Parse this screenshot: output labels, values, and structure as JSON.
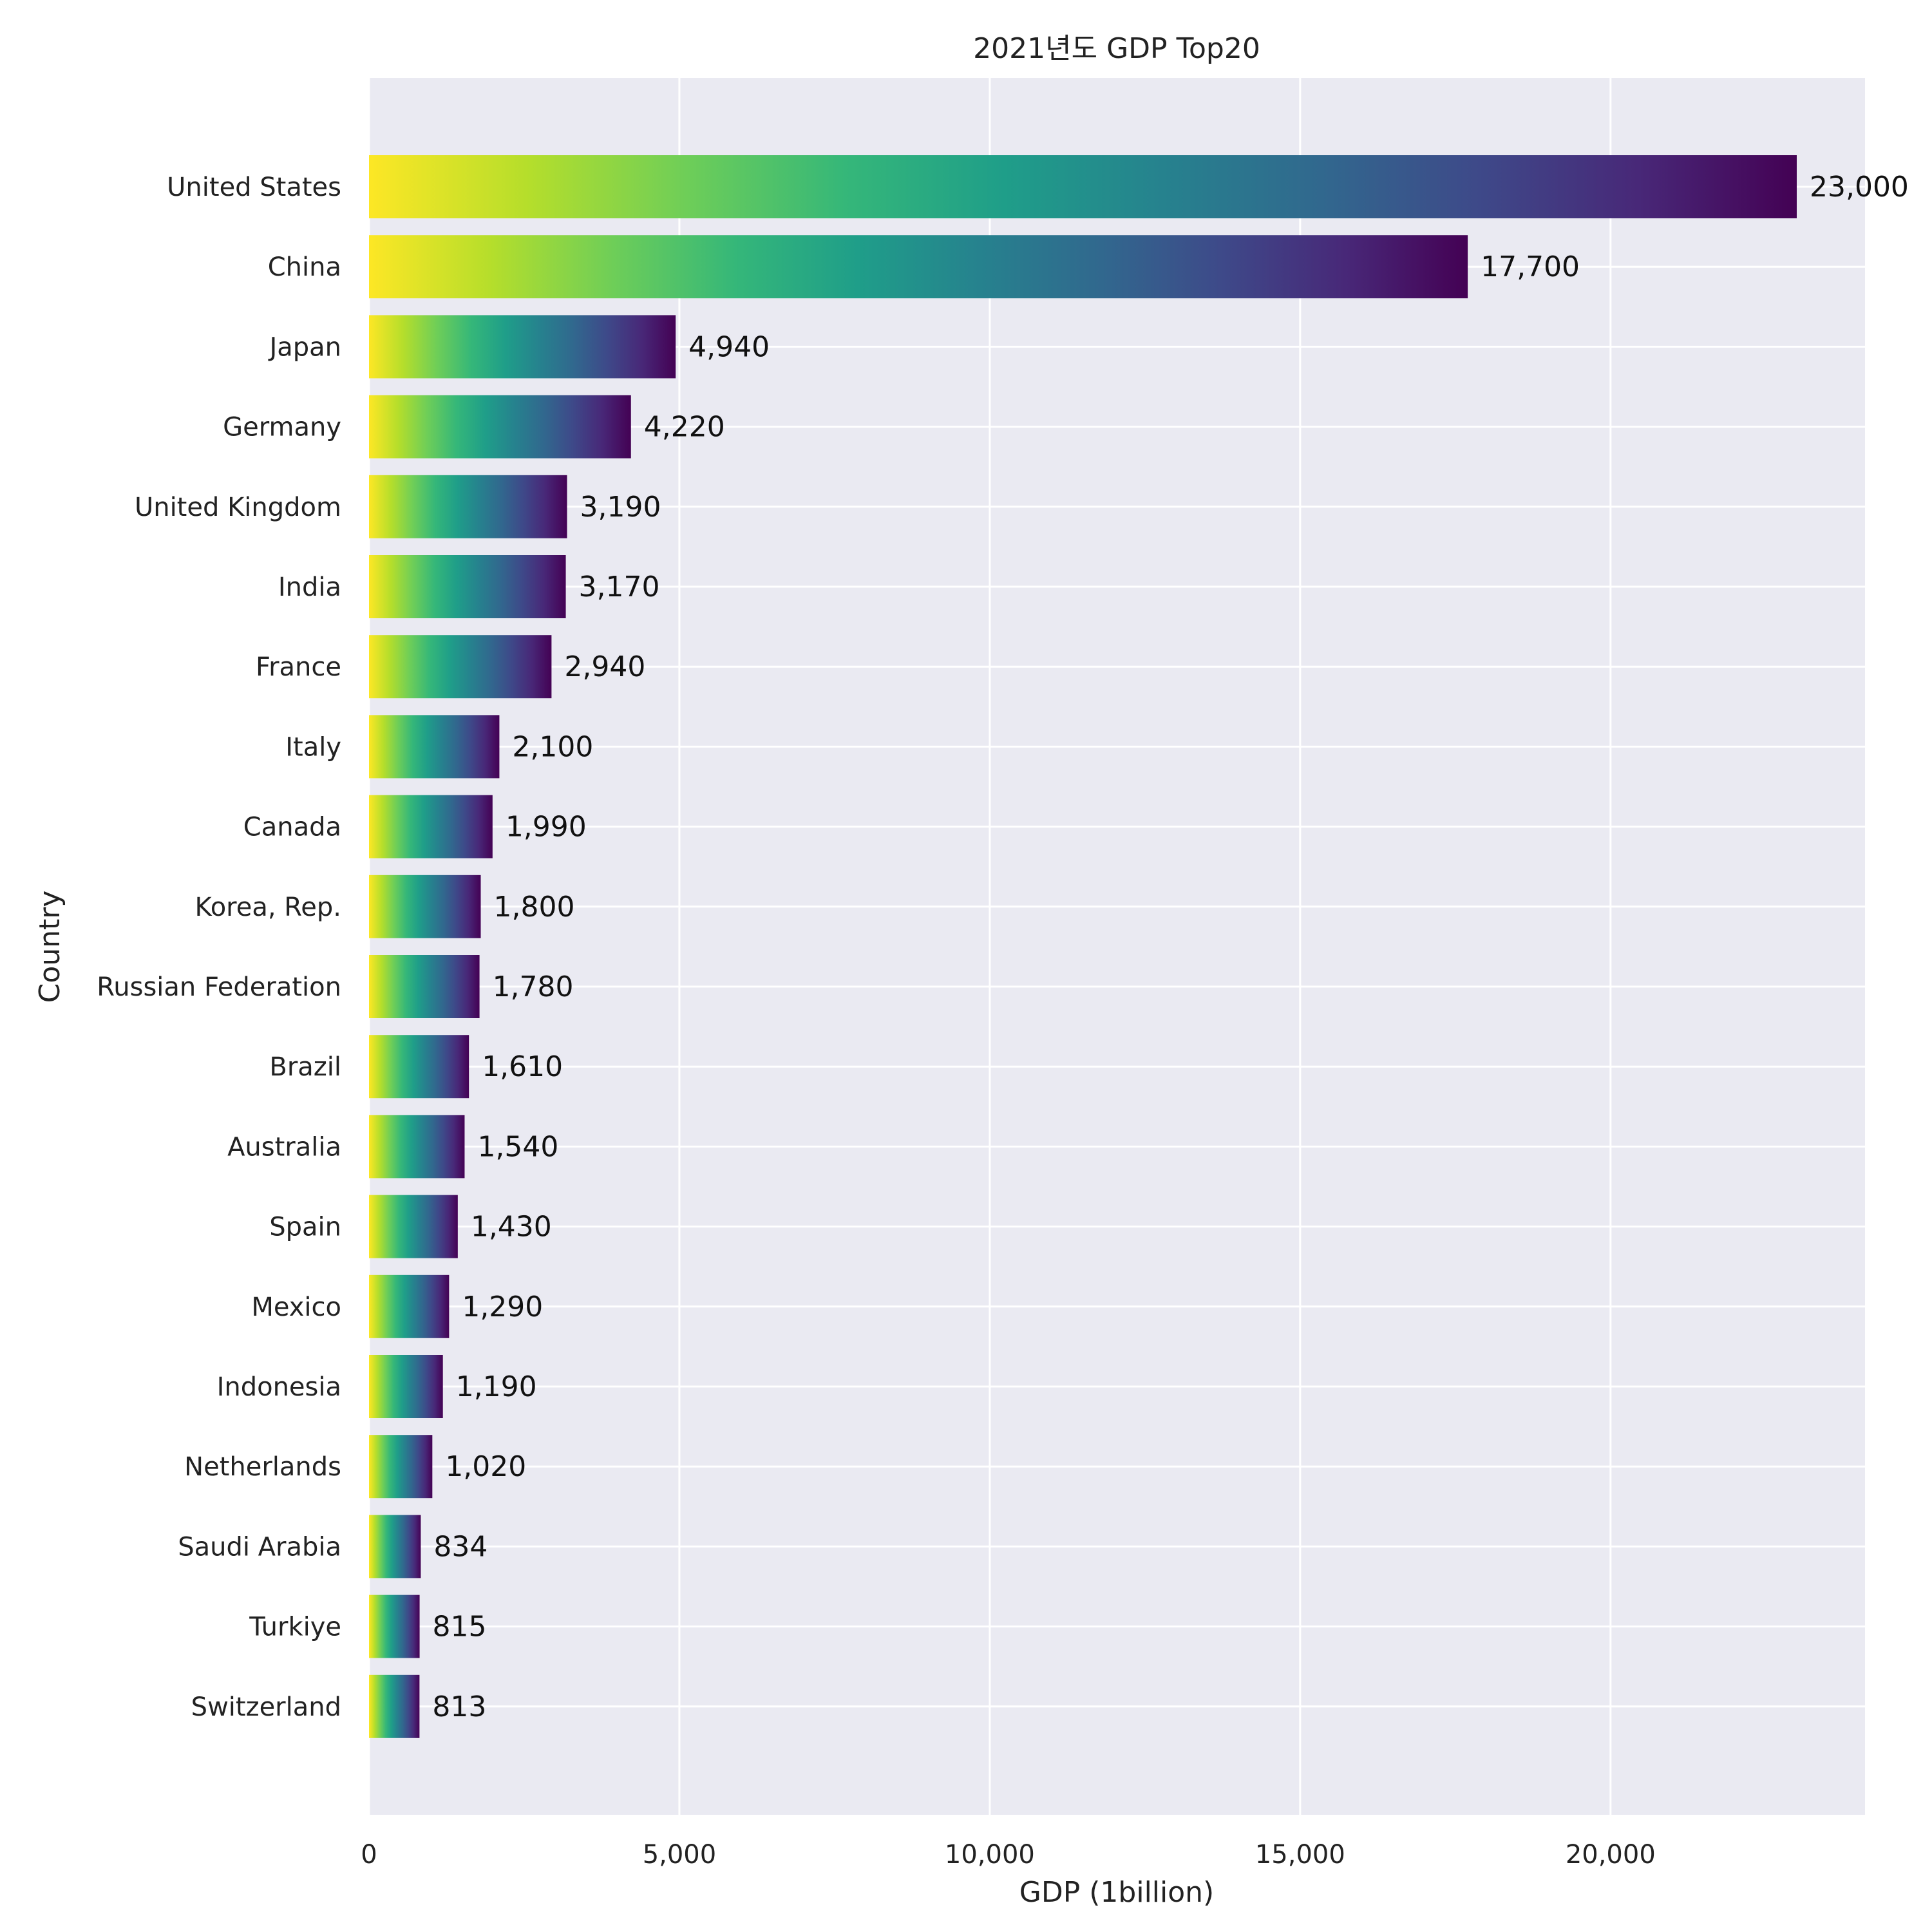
{
  "chart_data": {
    "type": "bar",
    "orientation": "horizontal",
    "title": "2021년도 GDP Top20",
    "xlabel": "GDP (1billion)",
    "ylabel": "Country",
    "xlim": [
      0,
      24100
    ],
    "xticks": [
      0,
      5000,
      10000,
      15000,
      20000
    ],
    "xtick_labels": [
      "0",
      "5,000",
      "10,000",
      "15,000",
      "20,000"
    ],
    "grid": true,
    "colormap": "viridis (reversed, left to right)",
    "colors": {
      "background": "#eaeaf2",
      "grid": "#ffffff",
      "gradient": [
        "#fde725",
        "#b5de2b",
        "#6ece58",
        "#35b779",
        "#1f9e89",
        "#26828e",
        "#31688e",
        "#3e4989",
        "#482878",
        "#440154"
      ]
    },
    "categories": [
      "United States",
      "China",
      "Japan",
      "Germany",
      "United Kingdom",
      "India",
      "France",
      "Italy",
      "Canada",
      "Korea, Rep.",
      "Russian Federation",
      "Brazil",
      "Australia",
      "Spain",
      "Mexico",
      "Indonesia",
      "Netherlands",
      "Saudi Arabia",
      "Turkiye",
      "Switzerland"
    ],
    "values": [
      23000,
      17700,
      4940,
      4220,
      3190,
      3170,
      2940,
      2100,
      1990,
      1800,
      1780,
      1610,
      1540,
      1430,
      1290,
      1190,
      1020,
      834,
      815,
      813
    ],
    "value_labels": [
      "23,000",
      "17,700",
      "4,940",
      "4,220",
      "3,190",
      "3,170",
      "2,940",
      "2,100",
      "1,990",
      "1,800",
      "1,780",
      "1,610",
      "1,540",
      "1,430",
      "1,290",
      "1,190",
      "1,020",
      "834",
      "815",
      "813"
    ]
  }
}
